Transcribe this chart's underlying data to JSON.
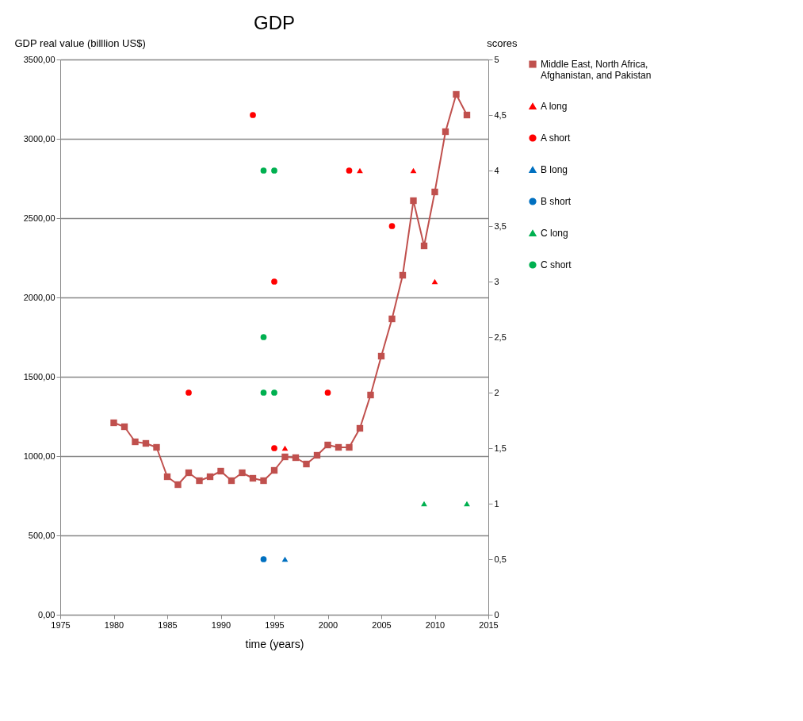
{
  "chart_data": {
    "type": "line",
    "title": "GDP",
    "xlabel": "time (years)",
    "ylabel": "GDP real value (billlion US$)",
    "y2label": "scores",
    "x": [
      1980,
      1981,
      1982,
      1983,
      1984,
      1985,
      1986,
      1987,
      1988,
      1989,
      1990,
      1991,
      1992,
      1993,
      1994,
      1995,
      1996,
      1997,
      1998,
      1999,
      2000,
      2001,
      2002,
      2003,
      2004,
      2005,
      2006,
      2007,
      2008,
      2009,
      2010,
      2011,
      2012,
      2013
    ],
    "series": [
      {
        "name": "Middle East, North Africa, Afghanistan, and Pakistan",
        "color": "#c0504d",
        "marker": "square",
        "values": [
          1210,
          1185,
          1090,
          1080,
          1055,
          870,
          820,
          895,
          845,
          870,
          905,
          845,
          895,
          860,
          845,
          910,
          995,
          990,
          950,
          1005,
          1070,
          1055,
          1055,
          1175,
          1385,
          1630,
          1865,
          2140,
          2610,
          2325,
          2665,
          3045,
          3280,
          3150
        ]
      },
      {
        "name": "A long",
        "type": "scatter",
        "axis": "y2",
        "marker": "triangle",
        "color": "#ff0000",
        "x": [
          1996,
          2003,
          2008,
          2010
        ],
        "values": [
          1.5,
          4,
          4,
          3
        ]
      },
      {
        "name": "A short",
        "type": "scatter",
        "axis": "y2",
        "marker": "circle",
        "color": "#ff0000",
        "x": [
          1987,
          1993,
          1995,
          1995,
          2000,
          2002,
          2006
        ],
        "values": [
          2,
          4.5,
          3,
          1.5,
          2,
          4,
          3.5
        ]
      },
      {
        "name": "B long",
        "type": "scatter",
        "axis": "y2",
        "marker": "triangle",
        "color": "#0070c0",
        "x": [
          1996
        ],
        "values": [
          0.5
        ]
      },
      {
        "name": "B short",
        "type": "scatter",
        "axis": "y2",
        "marker": "circle",
        "color": "#0070c0",
        "x": [
          1994
        ],
        "values": [
          0.5
        ]
      },
      {
        "name": "C long",
        "type": "scatter",
        "axis": "y2",
        "marker": "triangle",
        "color": "#00b050",
        "x": [
          2009,
          2013
        ],
        "values": [
          1,
          1
        ]
      },
      {
        "name": "C short",
        "type": "scatter",
        "axis": "y2",
        "marker": "circle",
        "color": "#00b050",
        "x": [
          1994,
          1995,
          1994,
          1994,
          1995
        ],
        "values": [
          4,
          4,
          2.5,
          2,
          2
        ]
      }
    ],
    "xlim": [
      1975,
      2015
    ],
    "xticks": [
      1975,
      1980,
      1985,
      1990,
      1995,
      2000,
      2005,
      2010,
      2015
    ],
    "ylim": [
      0,
      3500
    ],
    "yticks": [
      {
        "value": 0,
        "label": "0,00"
      },
      {
        "value": 500,
        "label": "500,00"
      },
      {
        "value": 1000,
        "label": "1000,00"
      },
      {
        "value": 1500,
        "label": "1500,00"
      },
      {
        "value": 2000,
        "label": "2000,00"
      },
      {
        "value": 2500,
        "label": "2500,00"
      },
      {
        "value": 3000,
        "label": "3000,00"
      },
      {
        "value": 3500,
        "label": "3500,00"
      }
    ],
    "y2lim": [
      0,
      5
    ],
    "y2ticks": [
      0,
      {
        "value": 0.5,
        "label": "0,5"
      },
      1,
      {
        "value": 1.5,
        "label": "1,5"
      },
      2,
      {
        "value": 2.5,
        "label": "2,5"
      },
      3,
      {
        "value": 3.5,
        "label": "3,5"
      },
      4,
      {
        "value": 4.5,
        "label": "4,5"
      },
      5
    ],
    "grid": "y",
    "legend": "right"
  }
}
